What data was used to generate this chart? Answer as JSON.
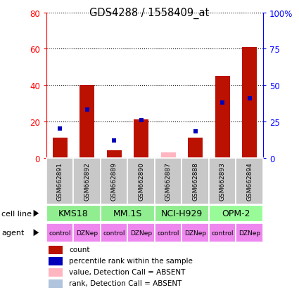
{
  "title": "GDS4288 / 1558409_at",
  "samples": [
    "GSM662891",
    "GSM662892",
    "GSM662889",
    "GSM662890",
    "GSM662887",
    "GSM662888",
    "GSM662893",
    "GSM662894"
  ],
  "count_values": [
    11,
    40,
    4,
    21,
    3,
    11,
    45,
    61
  ],
  "rank_values": [
    20,
    33,
    12,
    26,
    null,
    18,
    38,
    41
  ],
  "count_absent": [
    false,
    false,
    false,
    false,
    true,
    false,
    false,
    false
  ],
  "rank_absent": [
    false,
    false,
    false,
    false,
    true,
    false,
    false,
    false
  ],
  "cell_lines": [
    {
      "label": "KMS18",
      "cols": [
        0,
        1
      ],
      "color": "#90EE90"
    },
    {
      "label": "MM.1S",
      "cols": [
        2,
        3
      ],
      "color": "#90EE90"
    },
    {
      "label": "NCI-H929",
      "cols": [
        4,
        5
      ],
      "color": "#90EE90"
    },
    {
      "label": "OPM-2",
      "cols": [
        6,
        7
      ],
      "color": "#98FB98"
    }
  ],
  "agents": [
    "control",
    "DZNep",
    "control",
    "DZNep",
    "control",
    "DZNep",
    "control",
    "DZNep"
  ],
  "ylim_left": [
    0,
    80
  ],
  "ylim_right": [
    0,
    100
  ],
  "yticks_left": [
    0,
    20,
    40,
    60,
    80
  ],
  "ytick_labels_left": [
    "0",
    "20",
    "40",
    "60",
    "80"
  ],
  "yticks_right": [
    0,
    25,
    50,
    75,
    100
  ],
  "ytick_labels_right": [
    "0",
    "25",
    "50",
    "75",
    "100%"
  ],
  "bar_color": "#BB1100",
  "dot_color": "#0000BB",
  "absent_bar_color": "#FFB6C1",
  "absent_dot_color": "#B0C4DE",
  "bar_width": 0.55,
  "legend_items": [
    {
      "color": "#BB1100",
      "label": "count"
    },
    {
      "color": "#0000BB",
      "label": "percentile rank within the sample"
    },
    {
      "color": "#FFB6C1",
      "label": "value, Detection Call = ABSENT"
    },
    {
      "color": "#B0C4DE",
      "label": "rank, Detection Call = ABSENT"
    }
  ]
}
